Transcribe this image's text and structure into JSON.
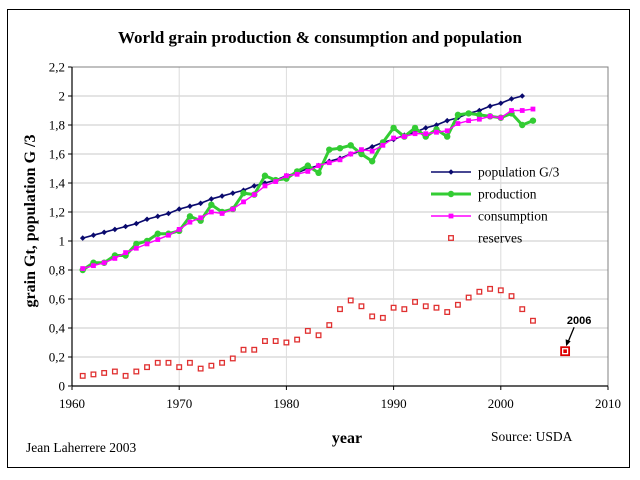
{
  "chart_data": {
    "type": "line",
    "title": "World grain production & consumption and population",
    "xlabel": "year",
    "ylabel": "grain Gt, population G /3",
    "xlim": [
      1960,
      2010
    ],
    "ylim": [
      0,
      2.2
    ],
    "x_ticks": [
      "1960",
      "1970",
      "1980",
      "1990",
      "2000",
      "2010"
    ],
    "y_ticks": [
      "0",
      "0,2",
      "0,4",
      "0,6",
      "0,8",
      "1",
      "1,2",
      "1,4",
      "1,6",
      "1,8",
      "2",
      "2,2"
    ],
    "grid": true,
    "legend_position": "right",
    "series": [
      {
        "name": "population G/3",
        "color": "#0a0a6e",
        "marker": "diamond",
        "x": [
          1961,
          1962,
          1963,
          1964,
          1965,
          1966,
          1967,
          1968,
          1969,
          1970,
          1971,
          1972,
          1973,
          1974,
          1975,
          1976,
          1977,
          1978,
          1979,
          1980,
          1981,
          1982,
          1983,
          1984,
          1985,
          1986,
          1987,
          1988,
          1989,
          1990,
          1991,
          1992,
          1993,
          1994,
          1995,
          1996,
          1997,
          1998,
          1999,
          2000,
          2001,
          2002
        ],
        "y": [
          1.02,
          1.04,
          1.06,
          1.08,
          1.1,
          1.12,
          1.15,
          1.17,
          1.19,
          1.22,
          1.24,
          1.26,
          1.29,
          1.31,
          1.33,
          1.35,
          1.38,
          1.4,
          1.42,
          1.45,
          1.47,
          1.5,
          1.52,
          1.55,
          1.57,
          1.6,
          1.62,
          1.65,
          1.68,
          1.7,
          1.73,
          1.75,
          1.78,
          1.8,
          1.83,
          1.85,
          1.88,
          1.9,
          1.93,
          1.95,
          1.98,
          2.0
        ]
      },
      {
        "name": "production",
        "color": "#33cc33",
        "marker": "circle",
        "x": [
          1961,
          1962,
          1963,
          1964,
          1965,
          1966,
          1967,
          1968,
          1969,
          1970,
          1971,
          1972,
          1973,
          1974,
          1975,
          1976,
          1977,
          1978,
          1979,
          1980,
          1981,
          1982,
          1983,
          1984,
          1985,
          1986,
          1987,
          1988,
          1989,
          1990,
          1991,
          1992,
          1993,
          1994,
          1995,
          1996,
          1997,
          1998,
          1999,
          2000,
          2001,
          2002,
          2003
        ],
        "y": [
          0.8,
          0.85,
          0.85,
          0.9,
          0.9,
          0.98,
          1.0,
          1.05,
          1.05,
          1.07,
          1.17,
          1.14,
          1.25,
          1.2,
          1.22,
          1.33,
          1.32,
          1.45,
          1.42,
          1.43,
          1.48,
          1.52,
          1.47,
          1.63,
          1.64,
          1.66,
          1.6,
          1.55,
          1.68,
          1.78,
          1.72,
          1.78,
          1.72,
          1.77,
          1.72,
          1.87,
          1.88,
          1.87,
          1.86,
          1.85,
          1.88,
          1.8,
          1.83
        ]
      },
      {
        "name": "consumption",
        "color": "#ff00ff",
        "marker": "square",
        "x": [
          1961,
          1962,
          1963,
          1964,
          1965,
          1966,
          1967,
          1968,
          1969,
          1970,
          1971,
          1972,
          1973,
          1974,
          1975,
          1976,
          1977,
          1978,
          1979,
          1980,
          1981,
          1982,
          1983,
          1984,
          1985,
          1986,
          1987,
          1988,
          1989,
          1990,
          1991,
          1992,
          1993,
          1994,
          1995,
          1996,
          1997,
          1998,
          1999,
          2000,
          2001,
          2002,
          2003
        ],
        "y": [
          0.81,
          0.83,
          0.85,
          0.88,
          0.92,
          0.95,
          0.98,
          1.01,
          1.04,
          1.08,
          1.13,
          1.16,
          1.2,
          1.19,
          1.22,
          1.27,
          1.32,
          1.38,
          1.41,
          1.45,
          1.46,
          1.48,
          1.52,
          1.54,
          1.56,
          1.6,
          1.63,
          1.62,
          1.66,
          1.71,
          1.72,
          1.74,
          1.74,
          1.75,
          1.76,
          1.81,
          1.83,
          1.84,
          1.86,
          1.85,
          1.9,
          1.9,
          1.91
        ]
      },
      {
        "name": "reserves",
        "color": "#e03030",
        "marker": "hollow-square",
        "x": [
          1961,
          1962,
          1963,
          1964,
          1965,
          1966,
          1967,
          1968,
          1969,
          1970,
          1971,
          1972,
          1973,
          1974,
          1975,
          1976,
          1977,
          1978,
          1979,
          1980,
          1981,
          1982,
          1983,
          1984,
          1985,
          1986,
          1987,
          1988,
          1989,
          1990,
          1991,
          1992,
          1993,
          1994,
          1995,
          1996,
          1997,
          1998,
          1999,
          2000,
          2001,
          2002,
          2003
        ],
        "y": [
          0.07,
          0.08,
          0.09,
          0.1,
          0.07,
          0.1,
          0.13,
          0.16,
          0.16,
          0.13,
          0.16,
          0.12,
          0.14,
          0.16,
          0.19,
          0.25,
          0.25,
          0.31,
          0.31,
          0.3,
          0.32,
          0.38,
          0.35,
          0.42,
          0.53,
          0.59,
          0.55,
          0.48,
          0.47,
          0.54,
          0.53,
          0.58,
          0.55,
          0.54,
          0.51,
          0.56,
          0.61,
          0.65,
          0.67,
          0.66,
          0.62,
          0.53,
          0.45
        ]
      }
    ],
    "highlight_point": {
      "x": 2006,
      "y": 0.24,
      "label": "2006",
      "color": "#dd0000"
    },
    "left_note": "Jean Laherrere 2003",
    "source": "Source: USDA"
  }
}
